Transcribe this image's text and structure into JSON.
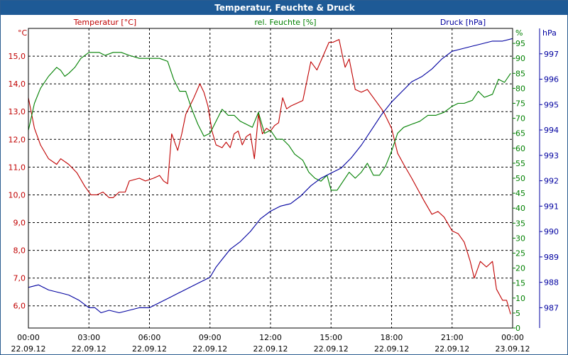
{
  "window": {
    "title": "Temperatur, Feuchte & Druck"
  },
  "colors": {
    "temperature": "#c00000",
    "humidity": "#008000",
    "pressure": "#0000a0",
    "grid": "#000000",
    "title_bar": "#1e5a96"
  },
  "chart_data": {
    "type": "line",
    "title": "Temperatur, Feuchte & Druck",
    "grid": true,
    "x_ticks": [
      {
        "time": "00:00",
        "date": "22.09.12"
      },
      {
        "time": "03:00",
        "date": "22.09.12"
      },
      {
        "time": "06:00",
        "date": "22.09.12"
      },
      {
        "time": "09:00",
        "date": "22.09.12"
      },
      {
        "time": "12:00",
        "date": "22.09.12"
      },
      {
        "time": "15:00",
        "date": "22.09.12"
      },
      {
        "time": "18:00",
        "date": "22.09.12"
      },
      {
        "time": "21:00",
        "date": "22.09.12"
      },
      {
        "time": "00:00",
        "date": "23.09.12"
      }
    ],
    "xlim_hours": [
      0,
      24
    ],
    "axes": {
      "temperature": {
        "label": "Temperatur [°C]",
        "unit": "°C",
        "ylim": [
          5.2,
          16.0
        ],
        "ticks": [
          "6,0",
          "7,0",
          "8,0",
          "9,0",
          "10,0",
          "11,0",
          "12,0",
          "13,0",
          "14,0",
          "15,0"
        ],
        "tick_values": [
          6,
          7,
          8,
          9,
          10,
          11,
          12,
          13,
          14,
          15
        ]
      },
      "humidity": {
        "label": "rel. Feuchte [%]",
        "unit": "%",
        "ylim": [
          0,
          100
        ],
        "ticks": [
          "0",
          "5",
          "10",
          "15",
          "20",
          "25",
          "30",
          "35",
          "40",
          "45",
          "50",
          "55",
          "60",
          "65",
          "70",
          "75",
          "80",
          "85",
          "90",
          "95"
        ],
        "tick_values": [
          0,
          5,
          10,
          15,
          20,
          25,
          30,
          35,
          40,
          45,
          50,
          55,
          60,
          65,
          70,
          75,
          80,
          85,
          90,
          95
        ]
      },
      "pressure": {
        "label": "Druck [hPa]",
        "unit": "hPa",
        "ylim": [
          986.2,
          998.0
        ],
        "ticks": [
          "987",
          "988",
          "989",
          "990",
          "991",
          "992",
          "993",
          "994",
          "995",
          "996",
          "997"
        ],
        "tick_values": [
          987,
          988,
          989,
          990,
          991,
          992,
          993,
          994,
          995,
          996,
          997
        ]
      }
    },
    "series": [
      {
        "name": "Temperatur [°C]",
        "axis": "temperature",
        "points": [
          [
            0,
            13.5
          ],
          [
            0.3,
            12.4
          ],
          [
            0.6,
            11.8
          ],
          [
            1.0,
            11.3
          ],
          [
            1.4,
            11.1
          ],
          [
            1.6,
            11.3
          ],
          [
            2.0,
            11.1
          ],
          [
            2.4,
            10.8
          ],
          [
            2.8,
            10.3
          ],
          [
            3.1,
            10.0
          ],
          [
            3.4,
            10.0
          ],
          [
            3.7,
            10.1
          ],
          [
            4.0,
            9.9
          ],
          [
            4.2,
            9.9
          ],
          [
            4.5,
            10.1
          ],
          [
            4.8,
            10.1
          ],
          [
            5.0,
            10.5
          ],
          [
            5.5,
            10.6
          ],
          [
            5.8,
            10.5
          ],
          [
            6.2,
            10.6
          ],
          [
            6.5,
            10.7
          ],
          [
            6.7,
            10.5
          ],
          [
            6.9,
            10.4
          ],
          [
            7.1,
            12.2
          ],
          [
            7.4,
            11.6
          ],
          [
            7.6,
            12.2
          ],
          [
            7.8,
            12.9
          ],
          [
            8.2,
            13.5
          ],
          [
            8.5,
            14.0
          ],
          [
            8.7,
            13.7
          ],
          [
            8.9,
            13.2
          ],
          [
            9.1,
            12.3
          ],
          [
            9.3,
            11.8
          ],
          [
            9.6,
            11.7
          ],
          [
            9.8,
            11.9
          ],
          [
            10.0,
            11.7
          ],
          [
            10.2,
            12.2
          ],
          [
            10.4,
            12.3
          ],
          [
            10.6,
            11.8
          ],
          [
            10.8,
            12.1
          ],
          [
            11.0,
            12.2
          ],
          [
            11.2,
            11.3
          ],
          [
            11.4,
            12.9
          ],
          [
            11.6,
            12.2
          ],
          [
            11.8,
            12.4
          ],
          [
            12.0,
            12.3
          ],
          [
            12.2,
            12.5
          ],
          [
            12.4,
            12.6
          ],
          [
            12.6,
            13.5
          ],
          [
            12.8,
            13.1
          ],
          [
            13.0,
            13.2
          ],
          [
            13.3,
            13.3
          ],
          [
            13.6,
            13.4
          ],
          [
            13.8,
            14.1
          ],
          [
            14.0,
            14.8
          ],
          [
            14.3,
            14.5
          ],
          [
            14.6,
            15.0
          ],
          [
            14.9,
            15.5
          ],
          [
            15.1,
            15.5
          ],
          [
            15.4,
            15.6
          ],
          [
            15.6,
            14.9
          ],
          [
            15.7,
            14.6
          ],
          [
            15.9,
            14.9
          ],
          [
            16.2,
            13.8
          ],
          [
            16.5,
            13.7
          ],
          [
            16.8,
            13.8
          ],
          [
            17.2,
            13.4
          ],
          [
            17.6,
            13.0
          ],
          [
            18.0,
            12.4
          ],
          [
            18.3,
            11.5
          ],
          [
            18.6,
            11.1
          ],
          [
            19.0,
            10.6
          ],
          [
            19.3,
            10.2
          ],
          [
            19.6,
            9.8
          ],
          [
            20.0,
            9.3
          ],
          [
            20.3,
            9.4
          ],
          [
            20.6,
            9.2
          ],
          [
            21.0,
            8.7
          ],
          [
            21.3,
            8.6
          ],
          [
            21.6,
            8.3
          ],
          [
            21.9,
            7.6
          ],
          [
            22.1,
            7.0
          ],
          [
            22.4,
            7.6
          ],
          [
            22.7,
            7.4
          ],
          [
            23.0,
            7.6
          ],
          [
            23.2,
            6.6
          ],
          [
            23.5,
            6.2
          ],
          [
            23.7,
            6.2
          ],
          [
            23.9,
            5.7
          ]
        ]
      },
      {
        "name": "rel. Feuchte [%]",
        "axis": "humidity",
        "points": [
          [
            0,
            66
          ],
          [
            0.3,
            75
          ],
          [
            0.6,
            80
          ],
          [
            1.0,
            84
          ],
          [
            1.4,
            87
          ],
          [
            1.6,
            86
          ],
          [
            1.8,
            84
          ],
          [
            2.0,
            85
          ],
          [
            2.3,
            87
          ],
          [
            2.6,
            90
          ],
          [
            3.0,
            92
          ],
          [
            3.5,
            92
          ],
          [
            3.8,
            91
          ],
          [
            4.2,
            92
          ],
          [
            4.6,
            92
          ],
          [
            5.0,
            91
          ],
          [
            5.5,
            90
          ],
          [
            6.0,
            90
          ],
          [
            6.5,
            90
          ],
          [
            6.9,
            89
          ],
          [
            7.2,
            83
          ],
          [
            7.5,
            79
          ],
          [
            7.8,
            79
          ],
          [
            8.1,
            73
          ],
          [
            8.4,
            68
          ],
          [
            8.7,
            64
          ],
          [
            9.0,
            65
          ],
          [
            9.3,
            69
          ],
          [
            9.6,
            73
          ],
          [
            9.9,
            71
          ],
          [
            10.2,
            71
          ],
          [
            10.5,
            69
          ],
          [
            10.8,
            68
          ],
          [
            11.1,
            67
          ],
          [
            11.4,
            72
          ],
          [
            11.7,
            65
          ],
          [
            12.0,
            66
          ],
          [
            12.3,
            63
          ],
          [
            12.6,
            63
          ],
          [
            12.9,
            61
          ],
          [
            13.2,
            58
          ],
          [
            13.6,
            56
          ],
          [
            13.9,
            52
          ],
          [
            14.2,
            50
          ],
          [
            14.5,
            49
          ],
          [
            14.8,
            51
          ],
          [
            15.0,
            46
          ],
          [
            15.3,
            46
          ],
          [
            15.6,
            49
          ],
          [
            15.9,
            52
          ],
          [
            16.2,
            50
          ],
          [
            16.5,
            52
          ],
          [
            16.8,
            55
          ],
          [
            17.1,
            51
          ],
          [
            17.4,
            51
          ],
          [
            17.7,
            54
          ],
          [
            18.0,
            59
          ],
          [
            18.3,
            65
          ],
          [
            18.6,
            67
          ],
          [
            19.0,
            68
          ],
          [
            19.4,
            69
          ],
          [
            19.8,
            71
          ],
          [
            20.2,
            71
          ],
          [
            20.6,
            72
          ],
          [
            21.0,
            74
          ],
          [
            21.3,
            75
          ],
          [
            21.6,
            75
          ],
          [
            22.0,
            76
          ],
          [
            22.3,
            79
          ],
          [
            22.6,
            77
          ],
          [
            23.0,
            78
          ],
          [
            23.3,
            83
          ],
          [
            23.6,
            82
          ],
          [
            23.9,
            85
          ]
        ]
      },
      {
        "name": "Druck [hPa]",
        "axis": "pressure",
        "points": [
          [
            0,
            987.8
          ],
          [
            0.5,
            987.9
          ],
          [
            1.0,
            987.7
          ],
          [
            1.5,
            987.6
          ],
          [
            2.0,
            987.5
          ],
          [
            2.5,
            987.3
          ],
          [
            3.0,
            987.0
          ],
          [
            3.3,
            987.0
          ],
          [
            3.6,
            986.8
          ],
          [
            4.0,
            986.9
          ],
          [
            4.5,
            986.8
          ],
          [
            5.0,
            986.9
          ],
          [
            5.5,
            987.0
          ],
          [
            6.0,
            987.0
          ],
          [
            6.5,
            987.2
          ],
          [
            7.0,
            987.4
          ],
          [
            7.5,
            987.6
          ],
          [
            8.0,
            987.8
          ],
          [
            8.5,
            988.0
          ],
          [
            9.0,
            988.2
          ],
          [
            9.3,
            988.6
          ],
          [
            9.6,
            988.9
          ],
          [
            10.0,
            989.3
          ],
          [
            10.5,
            989.6
          ],
          [
            11.0,
            990.0
          ],
          [
            11.5,
            990.5
          ],
          [
            12.0,
            990.8
          ],
          [
            12.5,
            991.0
          ],
          [
            13.0,
            991.1
          ],
          [
            13.5,
            991.4
          ],
          [
            14.0,
            991.8
          ],
          [
            14.5,
            992.1
          ],
          [
            15.0,
            992.3
          ],
          [
            15.5,
            992.5
          ],
          [
            16.0,
            992.9
          ],
          [
            16.5,
            993.4
          ],
          [
            17.0,
            994.0
          ],
          [
            17.5,
            994.6
          ],
          [
            18.0,
            995.1
          ],
          [
            18.5,
            995.5
          ],
          [
            19.0,
            995.9
          ],
          [
            19.5,
            996.1
          ],
          [
            20.0,
            996.4
          ],
          [
            20.5,
            996.8
          ],
          [
            21.0,
            997.1
          ],
          [
            21.5,
            997.2
          ],
          [
            22.0,
            997.3
          ],
          [
            22.5,
            997.4
          ],
          [
            23.0,
            997.5
          ],
          [
            23.5,
            997.5
          ],
          [
            24.0,
            997.6
          ]
        ]
      }
    ]
  }
}
